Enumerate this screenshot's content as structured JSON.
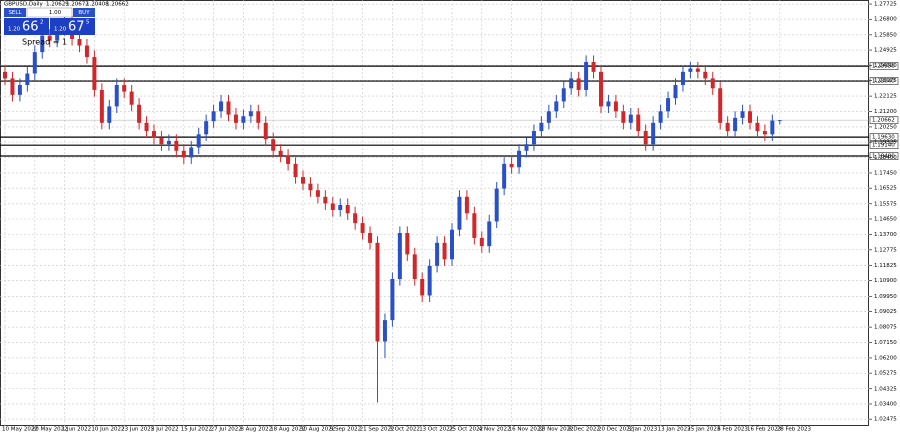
{
  "header": {
    "symbol": "GBPUSD,Daily"
  },
  "trade_panel": {
    "sell": "SELL",
    "volume": "1.00",
    "buy": "BUY",
    "sell_price": {
      "big": "1.20",
      "main": "66",
      "small": "2"
    },
    "buy_price": {
      "big": "1.20",
      "main": "67",
      "small": "5"
    },
    "spread": "Spread = 1"
  },
  "chart_data": {
    "type": "candlestick",
    "bull_color": "#2a50c8",
    "bear_color": "#d0272b",
    "grid": true,
    "ylim": [
      1.0206,
      1.2797
    ],
    "yticks": [
      1.27725,
      {
        "value": 1.268,
        "label": "1.26800"
      },
      {
        "value": 1.2585,
        "label": "1.25850"
      },
      1.24925,
      {
        "value": 1.24,
        "label": "1.24000"
      },
      1.23075,
      1.22125,
      {
        "value": 1.212,
        "label": "1.21200"
      },
      {
        "value": 1.2025,
        "label": "1.20250"
      },
      1.19325,
      {
        "value": 1.184,
        "label": "1.18400"
      },
      {
        "value": 1.1745,
        "label": "1.17450"
      },
      1.16525,
      1.15575,
      {
        "value": 1.1465,
        "label": "1.14650"
      },
      {
        "value": 1.137,
        "label": "1.13700"
      },
      1.12775,
      1.11825,
      {
        "value": 1.109,
        "label": "1.10900"
      },
      {
        "value": 1.0995,
        "label": "1.09950"
      },
      1.09025,
      1.08075,
      {
        "value": 1.0715,
        "label": "1.07150"
      },
      {
        "value": 1.062,
        "label": "1.06200"
      },
      1.05275,
      1.04325,
      {
        "value": 1.034,
        "label": "1.03400"
      },
      1.02475
    ],
    "levels": [
      {
        "value": 1.2395,
        "label": "1.23950"
      },
      {
        "value": 1.2304,
        "label": "1.23040"
      },
      {
        "value": 1.1963,
        "label": "1.19630"
      },
      {
        "value": 1.1914,
        "label": "1.19140"
      },
      {
        "value": 1.1848,
        "label": "1.18480"
      }
    ],
    "categories": [
      "10 May 2022",
      null,
      null,
      null,
      "20 May 2022",
      null,
      null,
      null,
      "1 Jun 2022",
      null,
      null,
      null,
      "10 Jun 2022",
      null,
      null,
      null,
      "23 Jun 2022",
      null,
      null,
      null,
      "5 Jul 2022",
      null,
      null,
      null,
      "15 Jul 2022",
      null,
      null,
      null,
      "27 Jul 2022",
      null,
      null,
      null,
      "8 Aug 2022",
      null,
      null,
      null,
      "18 Aug 2022",
      null,
      null,
      null,
      "30 Aug 2022",
      null,
      null,
      null,
      "9 Sep 2022",
      null,
      null,
      null,
      "21 Sep 2022",
      null,
      null,
      null,
      "3 Oct 2022",
      null,
      null,
      null,
      "13 Oct 2022",
      null,
      null,
      null,
      "25 Oct 2022",
      null,
      null,
      null,
      "4 Nov 2022",
      null,
      null,
      null,
      "16 Nov 2022",
      null,
      null,
      null,
      "28 Nov 2022",
      null,
      null,
      null,
      "8 Dec 2022",
      null,
      null,
      null,
      "20 Dec 2022",
      null,
      null,
      null,
      "3 Jan 2023",
      null,
      null,
      null,
      "13 Jan 2023",
      null,
      null,
      null,
      "25 Jan 2023",
      null,
      null,
      null,
      "6 Feb 2023",
      null,
      null,
      null,
      "16 Feb 2023",
      null,
      null,
      null,
      "28 Feb 2023"
    ],
    "open": [
      1.236,
      1.232,
      1.222,
      1.228,
      1.235,
      1.248,
      1.258,
      1.255,
      1.262,
      1.266,
      1.256,
      1.252,
      1.245,
      1.225,
      1.205,
      1.215,
      1.228,
      1.224,
      1.216,
      1.205,
      1.2,
      1.196,
      1.192,
      1.194,
      1.188,
      1.184,
      1.19,
      1.198,
      1.206,
      1.212,
      1.218,
      1.21,
      1.205,
      1.209,
      1.212,
      1.205,
      1.195,
      1.188,
      1.185,
      1.18,
      1.172,
      1.168,
      1.164,
      1.16,
      1.156,
      1.152,
      1.155,
      1.15,
      1.144,
      1.138,
      1.132,
      1.072,
      1.085,
      1.11,
      1.138,
      1.125,
      1.11,
      1.1,
      1.118,
      1.132,
      1.122,
      1.14,
      1.16,
      1.15,
      1.135,
      1.13,
      1.145,
      1.165,
      1.18,
      1.178,
      1.188,
      1.192,
      1.2,
      1.205,
      1.212,
      1.218,
      1.226,
      1.232,
      1.225,
      1.242,
      1.236,
      1.215,
      1.218,
      1.212,
      1.205,
      1.21,
      1.2,
      1.192,
      1.205,
      1.212,
      1.22,
      1.228,
      1.236,
      1.238,
      1.236,
      1.232,
      1.226,
      1.205,
      1.2,
      1.208,
      1.212,
      1.205,
      1.2,
      1.198,
      1.20629
    ],
    "high": [
      1.24,
      1.236,
      1.232,
      1.239,
      1.252,
      1.262,
      1.262,
      1.266,
      1.27,
      1.27,
      1.26,
      1.256,
      1.249,
      1.229,
      1.219,
      1.232,
      1.232,
      1.228,
      1.22,
      1.209,
      1.204,
      1.2,
      1.198,
      1.198,
      1.192,
      1.194,
      1.202,
      1.21,
      1.216,
      1.222,
      1.222,
      1.214,
      1.213,
      1.216,
      1.216,
      1.209,
      1.199,
      1.192,
      1.189,
      1.184,
      1.176,
      1.172,
      1.168,
      1.164,
      1.16,
      1.159,
      1.159,
      1.154,
      1.148,
      1.142,
      1.136,
      1.089,
      1.114,
      1.142,
      1.142,
      1.129,
      1.114,
      1.122,
      1.136,
      1.136,
      1.144,
      1.164,
      1.164,
      1.154,
      1.139,
      1.149,
      1.169,
      1.184,
      1.184,
      1.192,
      1.196,
      1.204,
      1.209,
      1.216,
      1.222,
      1.23,
      1.236,
      1.236,
      1.246,
      1.246,
      1.24,
      1.222,
      1.222,
      1.216,
      1.214,
      1.214,
      1.204,
      1.209,
      1.216,
      1.224,
      1.232,
      1.24,
      1.242,
      1.242,
      1.24,
      1.236,
      1.23,
      1.209,
      1.212,
      1.216,
      1.216,
      1.209,
      1.204,
      1.21,
      1.20672
    ],
    "low": [
      1.228,
      1.218,
      1.218,
      1.224,
      1.231,
      1.244,
      1.251,
      1.251,
      1.258,
      1.252,
      1.248,
      1.241,
      1.221,
      1.201,
      1.201,
      1.211,
      1.22,
      1.212,
      1.201,
      1.196,
      1.192,
      1.188,
      1.188,
      1.184,
      1.18,
      1.18,
      1.186,
      1.194,
      1.202,
      1.208,
      1.206,
      1.201,
      1.201,
      1.205,
      1.201,
      1.191,
      1.184,
      1.181,
      1.176,
      1.168,
      1.164,
      1.16,
      1.156,
      1.152,
      1.148,
      1.148,
      1.146,
      1.14,
      1.134,
      1.128,
      1.035,
      1.062,
      1.081,
      1.106,
      1.121,
      1.106,
      1.096,
      1.096,
      1.114,
      1.118,
      1.118,
      1.136,
      1.146,
      1.131,
      1.126,
      1.126,
      1.141,
      1.161,
      1.174,
      1.174,
      1.184,
      1.188,
      1.196,
      1.201,
      1.208,
      1.214,
      1.222,
      1.221,
      1.221,
      1.232,
      1.211,
      1.211,
      1.208,
      1.201,
      1.201,
      1.196,
      1.188,
      1.188,
      1.201,
      1.208,
      1.216,
      1.224,
      1.232,
      1.232,
      1.228,
      1.222,
      1.201,
      1.196,
      1.196,
      1.204,
      1.201,
      1.196,
      1.194,
      1.194,
      1.20408
    ],
    "close": [
      1.232,
      1.222,
      1.228,
      1.235,
      1.248,
      1.258,
      1.255,
      1.262,
      1.266,
      1.256,
      1.252,
      1.245,
      1.225,
      1.205,
      1.215,
      1.228,
      1.224,
      1.216,
      1.205,
      1.2,
      1.196,
      1.192,
      1.194,
      1.188,
      1.184,
      1.19,
      1.198,
      1.206,
      1.212,
      1.218,
      1.21,
      1.205,
      1.209,
      1.212,
      1.205,
      1.195,
      1.188,
      1.185,
      1.18,
      1.172,
      1.168,
      1.164,
      1.16,
      1.156,
      1.152,
      1.155,
      1.15,
      1.144,
      1.138,
      1.132,
      1.072,
      1.085,
      1.11,
      1.138,
      1.125,
      1.11,
      1.1,
      1.118,
      1.132,
      1.122,
      1.14,
      1.16,
      1.15,
      1.135,
      1.13,
      1.145,
      1.165,
      1.18,
      1.178,
      1.188,
      1.192,
      1.2,
      1.205,
      1.212,
      1.218,
      1.226,
      1.232,
      1.225,
      1.242,
      1.236,
      1.215,
      1.218,
      1.212,
      1.205,
      1.21,
      1.2,
      1.192,
      1.205,
      1.212,
      1.22,
      1.228,
      1.236,
      1.238,
      1.236,
      1.232,
      1.226,
      1.205,
      1.2,
      1.208,
      1.212,
      1.205,
      1.2,
      1.198,
      1.2063,
      1.20662
    ]
  }
}
